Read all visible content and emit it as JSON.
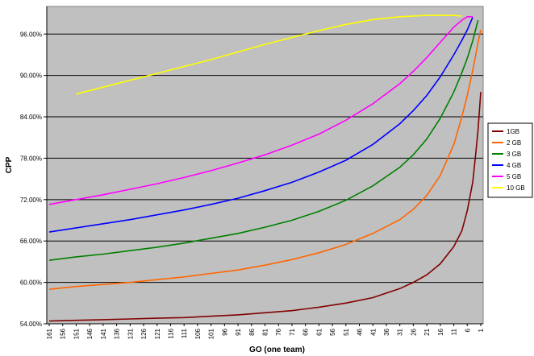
{
  "chart_data": {
    "type": "line",
    "xlabel": "GO (one team)",
    "ylabel": "CPP",
    "x_tick_labels": [
      "161",
      "156",
      "151",
      "146",
      "141",
      "136",
      "131",
      "126",
      "121",
      "116",
      "111",
      "106",
      "101",
      "96",
      "91",
      "86",
      "81",
      "76",
      "71",
      "66",
      "61",
      "56",
      "51",
      "46",
      "41",
      "36",
      "31",
      "26",
      "21",
      "16",
      "11",
      "6",
      "1"
    ],
    "y_tick_labels": [
      "54.00%",
      "60.00%",
      "66.00%",
      "72.00%",
      "78.00%",
      "84.00%",
      "90.00%",
      "96.00%"
    ],
    "ylim": [
      0.54,
      1.0
    ],
    "xlim": [
      161,
      1
    ],
    "grid": true,
    "legend_position": "right",
    "series": [
      {
        "name": "1GB",
        "color": "#800000",
        "x": [
          161,
          151,
          141,
          131,
          121,
          111,
          101,
          91,
          81,
          71,
          61,
          51,
          41,
          31,
          26,
          21,
          16,
          11,
          8,
          6,
          4,
          3,
          2,
          1
        ],
        "y": [
          0.544,
          0.545,
          0.546,
          0.547,
          0.548,
          0.549,
          0.551,
          0.553,
          0.556,
          0.559,
          0.564,
          0.57,
          0.578,
          0.591,
          0.6,
          0.611,
          0.627,
          0.652,
          0.675,
          0.704,
          0.745,
          0.781,
          0.822,
          0.876
        ]
      },
      {
        "name": "2 GB",
        "color": "#ff6600",
        "x": [
          161,
          151,
          141,
          131,
          121,
          111,
          101,
          91,
          81,
          71,
          61,
          51,
          41,
          31,
          26,
          21,
          16,
          11,
          8,
          6,
          4,
          3,
          2,
          1
        ],
        "y": [
          0.59,
          0.594,
          0.597,
          0.6,
          0.604,
          0.608,
          0.613,
          0.618,
          0.625,
          0.633,
          0.643,
          0.655,
          0.671,
          0.691,
          0.706,
          0.726,
          0.755,
          0.8,
          0.84,
          0.871,
          0.907,
          0.927,
          0.948,
          0.966
        ]
      },
      {
        "name": "3 GB",
        "color": "#008000",
        "x": [
          161,
          151,
          141,
          131,
          121,
          111,
          101,
          91,
          81,
          71,
          61,
          51,
          41,
          31,
          26,
          21,
          16,
          11,
          8,
          6,
          4,
          3,
          2
        ],
        "y": [
          0.632,
          0.637,
          0.641,
          0.646,
          0.651,
          0.657,
          0.664,
          0.671,
          0.68,
          0.69,
          0.703,
          0.719,
          0.74,
          0.767,
          0.785,
          0.808,
          0.838,
          0.876,
          0.904,
          0.925,
          0.95,
          0.965,
          0.98
        ]
      },
      {
        "name": "4 GB",
        "color": "#0000ff",
        "x": [
          161,
          151,
          141,
          131,
          121,
          111,
          101,
          91,
          81,
          71,
          61,
          51,
          41,
          31,
          26,
          21,
          16,
          11,
          8,
          6,
          5,
          4
        ],
        "y": [
          0.673,
          0.679,
          0.685,
          0.691,
          0.698,
          0.705,
          0.713,
          0.722,
          0.733,
          0.745,
          0.76,
          0.777,
          0.8,
          0.83,
          0.849,
          0.871,
          0.898,
          0.93,
          0.951,
          0.966,
          0.975,
          0.984
        ]
      },
      {
        "name": "5 GB",
        "color": "#ff00ff",
        "x": [
          161,
          151,
          141,
          131,
          121,
          111,
          101,
          91,
          81,
          71,
          61,
          51,
          41,
          31,
          26,
          21,
          16,
          11,
          8,
          6,
          4
        ],
        "y": [
          0.713,
          0.72,
          0.727,
          0.735,
          0.743,
          0.752,
          0.762,
          0.773,
          0.785,
          0.799,
          0.815,
          0.835,
          0.859,
          0.888,
          0.906,
          0.926,
          0.948,
          0.97,
          0.98,
          0.985,
          0.985
        ]
      },
      {
        "name": "10 GB",
        "color": "#ffff00",
        "x": [
          151,
          141,
          131,
          121,
          111,
          101,
          91,
          81,
          71,
          61,
          51,
          41,
          31,
          26,
          21,
          16,
          11,
          8
        ],
        "y": [
          0.873,
          0.883,
          0.893,
          0.903,
          0.913,
          0.923,
          0.934,
          0.945,
          0.955,
          0.965,
          0.974,
          0.981,
          0.985,
          0.986,
          0.987,
          0.987,
          0.987,
          0.986
        ]
      }
    ]
  }
}
